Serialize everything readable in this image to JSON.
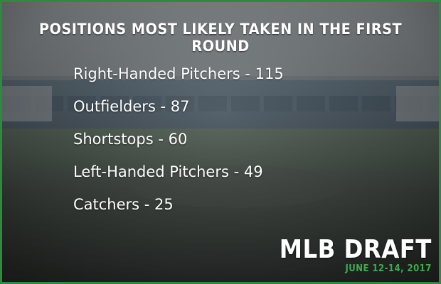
{
  "title": "Positions Most Likely Taken In The First Round",
  "positions": [
    {
      "text": "Right-Handed Pitchers - 115"
    },
    {
      "text": "Outfielders - 87"
    },
    {
      "text": "Shortstops - 60"
    },
    {
      "text": "Left-Handed Pitchers - 49"
    },
    {
      "text": "Catchers - 25"
    }
  ],
  "brand": {
    "title": "MLB DRAFT",
    "date": "June 12-14, 2017"
  },
  "colors": {
    "accent": "#3cae4c",
    "border": "#2e8a3e",
    "text": "#ffffff"
  }
}
